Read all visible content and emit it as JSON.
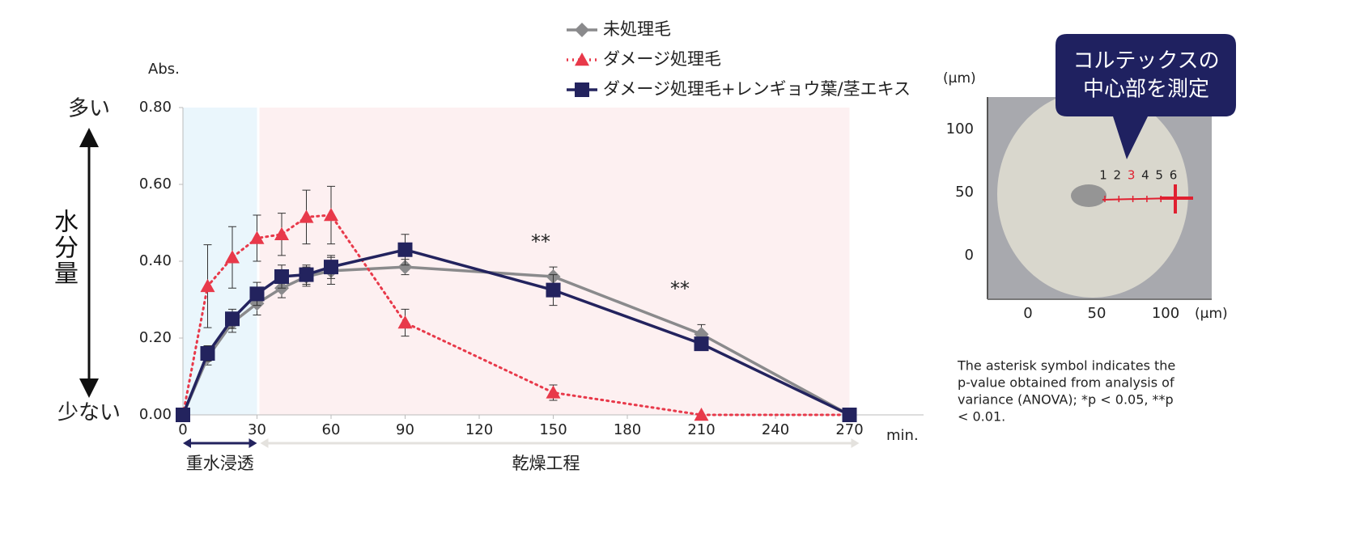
{
  "chart_data": {
    "type": "line",
    "y_label": "Abs.",
    "y_top_label": "多い",
    "y_bottom_label": "少ない",
    "y_title": "水分量",
    "x_label": "min.",
    "x": [
      0,
      10,
      20,
      30,
      40,
      50,
      60,
      90,
      150,
      210,
      270
    ],
    "series": [
      {
        "name": "未処理毛",
        "color": "#8a8a8c",
        "marker": "diamond",
        "dash": "solid",
        "values": [
          0,
          0.15,
          0.24,
          0.29,
          0.33,
          0.36,
          0.375,
          0.385,
          0.36,
          0.21,
          0
        ],
        "errors": [
          null,
          0.02,
          0.025,
          0.03,
          0.025,
          0.025,
          0.035,
          0.02,
          0.025,
          0.025,
          null
        ]
      },
      {
        "name": "ダメージ処理毛",
        "color": "#e8394a",
        "marker": "triangle",
        "dash": "dotted",
        "values": [
          0,
          0.335,
          0.41,
          0.46,
          0.47,
          0.515,
          0.52,
          0.24,
          0.058,
          0,
          0
        ],
        "errors": [
          null,
          0.108,
          0.08,
          0.06,
          0.055,
          0.07,
          0.075,
          0.035,
          0.02,
          null,
          null
        ]
      },
      {
        "name": "ダメージ処理毛+レンギョウ葉/茎エキス",
        "color": "#23235e",
        "marker": "square",
        "dash": "solid",
        "values": [
          0,
          0.16,
          0.25,
          0.315,
          0.36,
          0.365,
          0.385,
          0.43,
          0.325,
          0.185,
          0
        ],
        "errors": [
          null,
          0.02,
          0.025,
          0.03,
          0.03,
          0.025,
          0.03,
          0.04,
          0.04,
          0.015,
          null
        ]
      }
    ],
    "xlim": [
      0,
      300
    ],
    "xticks": [
      0,
      30,
      60,
      90,
      120,
      150,
      180,
      210,
      240,
      270
    ],
    "ylim": [
      0,
      0.8
    ],
    "yticks": [
      {
        "value": 0,
        "label": "0.00"
      },
      {
        "value": 0.2,
        "label": "0.20"
      },
      {
        "value": 0.4,
        "label": "0.40"
      },
      {
        "value": 0.6,
        "label": "0.60"
      },
      {
        "value": 0.8,
        "label": "0.80"
      }
    ],
    "phases": [
      {
        "label": "重水浸透",
        "range": [
          0,
          30
        ],
        "color": "#eaf6fc",
        "arrow_color": "#23235e"
      },
      {
        "label": "乾燥工程",
        "range": [
          30,
          270
        ],
        "color": "#fdf0f1",
        "arrow_color": "#e4e2de"
      }
    ],
    "annotations": [
      "**",
      "**"
    ]
  },
  "inset": {
    "unit_label": "(μm)",
    "yticks": [
      "100",
      "50",
      "0"
    ],
    "xticks": [
      "0",
      "50",
      "100"
    ],
    "callout": [
      "コルテックスの",
      "中心部を測定"
    ],
    "point_labels": [
      "1",
      "2",
      "3",
      "4",
      "5",
      "6"
    ]
  },
  "footnote": [
    "The asterisk symbol indicates the",
    "p-value obtained from analysis of",
    "variance (ANOVA); *p < 0.05, **p",
    "< 0.01."
  ]
}
